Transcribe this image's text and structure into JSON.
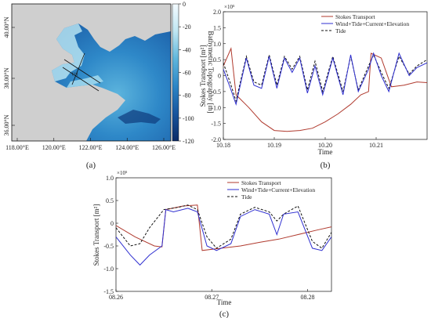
{
  "panels": {
    "a": {
      "label": "(a)"
    },
    "b": {
      "label": "(b)"
    },
    "c": {
      "label": "(c)"
    }
  },
  "colors": {
    "stokes": "#b03a2e",
    "combined": "#2f2fd0",
    "tide": "#111111"
  },
  "chart_data": [
    {
      "type": "heatmap",
      "panel": "a",
      "description_visible": "bathymetric map",
      "x_ticks": [
        "118.00°E",
        "120.00°E",
        "122.00°E",
        "124.00°E",
        "126.00°E"
      ],
      "y_ticks": [
        "36.00°N",
        "38.00°N",
        "40.00°N"
      ],
      "colorbar": {
        "label": "Bathymetric Topography [m]",
        "ticks": [
          "0",
          "-20",
          "-40",
          "-60",
          "-80",
          "-100",
          "-120"
        ],
        "range": [
          -120,
          0
        ]
      },
      "annotations": [
        "(+)"
      ]
    },
    {
      "type": "line",
      "panel": "b",
      "xlabel": "Time",
      "ylabel": "Stokes Transport [m²]",
      "exponent": "×10⁵",
      "xlim": [
        10.18,
        10.22
      ],
      "ylim": [
        -2.0,
        2.0
      ],
      "x_ticks": [
        "10.18",
        "10.19",
        "10.20",
        "10.21"
      ],
      "y_ticks": [
        "2.0",
        "1.5",
        "1.0",
        "0.5",
        "0",
        "-0.5",
        "-1.0",
        "-1.5",
        "-2.0"
      ],
      "legend": [
        "Stokes Transport",
        "Wind+Tide+Current+Elevation",
        "Tide"
      ],
      "legend_position": "top-right",
      "x": [
        10.18,
        10.1815,
        10.1825,
        10.185,
        10.19,
        10.195,
        10.1975,
        10.2,
        10.205,
        10.2085,
        10.2095,
        10.215,
        10.22
      ],
      "series": [
        {
          "name": "Stokes Transport",
          "points": [
            [
              10.18,
              0.3
            ],
            [
              10.1815,
              0.85
            ],
            [
              10.1825,
              -0.6
            ],
            [
              10.185,
              -1.0
            ],
            [
              10.1875,
              -1.45
            ],
            [
              10.19,
              -1.72
            ],
            [
              10.1925,
              -1.75
            ],
            [
              10.195,
              -1.72
            ],
            [
              10.1975,
              -1.65
            ],
            [
              10.2,
              -1.45
            ],
            [
              10.2025,
              -1.2
            ],
            [
              10.205,
              -0.9
            ],
            [
              10.207,
              -0.6
            ],
            [
              10.2085,
              -0.5
            ],
            [
              10.209,
              0.7
            ],
            [
              10.211,
              0.55
            ],
            [
              10.213,
              -0.35
            ],
            [
              10.2155,
              -0.3
            ],
            [
              10.218,
              -0.2
            ],
            [
              10.22,
              -0.22
            ]
          ]
        },
        {
          "name": "Wind+Tide+Current+Elevation",
          "points": [
            [
              10.18,
              0.2
            ],
            [
              10.1815,
              -0.45
            ],
            [
              10.1825,
              -0.9
            ],
            [
              10.1845,
              0.55
            ],
            [
              10.186,
              -0.3
            ],
            [
              10.1875,
              -0.4
            ],
            [
              10.189,
              0.6
            ],
            [
              10.1905,
              -0.4
            ],
            [
              10.192,
              0.55
            ],
            [
              10.1935,
              0.1
            ],
            [
              10.195,
              0.55
            ],
            [
              10.1965,
              -0.55
            ],
            [
              10.198,
              0.3
            ],
            [
              10.1995,
              -0.6
            ],
            [
              10.2015,
              0.55
            ],
            [
              10.2035,
              -0.6
            ],
            [
              10.205,
              0.65
            ],
            [
              10.2065,
              -0.5
            ],
            [
              10.2085,
              0.2
            ],
            [
              10.2095,
              0.7
            ],
            [
              10.211,
              0.0
            ],
            [
              10.2125,
              -0.5
            ],
            [
              10.2145,
              0.7
            ],
            [
              10.2165,
              0.0
            ],
            [
              10.218,
              0.25
            ],
            [
              10.22,
              0.4
            ]
          ]
        },
        {
          "name": "Tide",
          "points": [
            [
              10.18,
              0.4
            ],
            [
              10.1815,
              -0.3
            ],
            [
              10.1825,
              -0.8
            ],
            [
              10.1845,
              0.6
            ],
            [
              10.186,
              -0.2
            ],
            [
              10.1875,
              -0.3
            ],
            [
              10.189,
              0.65
            ],
            [
              10.1905,
              -0.3
            ],
            [
              10.192,
              0.6
            ],
            [
              10.1935,
              0.2
            ],
            [
              10.195,
              0.6
            ],
            [
              10.1965,
              -0.45
            ],
            [
              10.198,
              0.45
            ],
            [
              10.1995,
              -0.5
            ],
            [
              10.2015,
              0.6
            ],
            [
              10.2035,
              -0.5
            ],
            [
              10.205,
              0.6
            ],
            [
              10.2065,
              -0.45
            ],
            [
              10.2085,
              0.3
            ],
            [
              10.2095,
              0.65
            ],
            [
              10.211,
              0.1
            ],
            [
              10.2125,
              -0.4
            ],
            [
              10.2145,
              0.6
            ],
            [
              10.2165,
              0.05
            ],
            [
              10.218,
              0.3
            ],
            [
              10.22,
              0.5
            ]
          ]
        }
      ]
    },
    {
      "type": "line",
      "panel": "c",
      "xlabel": "Time",
      "ylabel": "Stokes Transport [m²]",
      "exponent": "×10⁵",
      "xlim": [
        8.26,
        8.2825
      ],
      "ylim": [
        -1.5,
        1.0
      ],
      "x_ticks": [
        "08.26",
        "08.27",
        "08.28"
      ],
      "y_ticks": [
        "1.0",
        "0.5",
        "0",
        "-0.5",
        "-1.0",
        "-1.5"
      ],
      "legend": [
        "Stokes Transport",
        "Wind+Tide+Current+Elevation",
        "Tide"
      ],
      "legend_position": "top-center",
      "series": [
        {
          "name": "Stokes Transport",
          "points": [
            [
              8.26,
              -0.05
            ],
            [
              8.262,
              -0.3
            ],
            [
              8.264,
              -0.5
            ],
            [
              8.2648,
              -0.52
            ],
            [
              8.2652,
              0.3
            ],
            [
              8.267,
              0.38
            ],
            [
              8.2685,
              0.4
            ],
            [
              8.269,
              -0.6
            ],
            [
              8.271,
              -0.55
            ],
            [
              8.273,
              -0.5
            ],
            [
              8.275,
              -0.42
            ],
            [
              8.277,
              -0.35
            ],
            [
              8.279,
              -0.25
            ],
            [
              8.281,
              -0.15
            ],
            [
              8.2825,
              -0.08
            ]
          ]
        },
        {
          "name": "Wind+Tide+Current+Elevation",
          "points": [
            [
              8.26,
              -0.3
            ],
            [
              8.2615,
              -0.7
            ],
            [
              8.2625,
              -0.92
            ],
            [
              8.2635,
              -0.7
            ],
            [
              8.2648,
              -0.5
            ],
            [
              8.2652,
              0.3
            ],
            [
              8.266,
              0.25
            ],
            [
              8.2675,
              0.33
            ],
            [
              8.2685,
              0.25
            ],
            [
              8.2695,
              -0.5
            ],
            [
              8.2705,
              -0.6
            ],
            [
              8.272,
              -0.45
            ],
            [
              8.273,
              0.15
            ],
            [
              8.2745,
              0.3
            ],
            [
              8.276,
              0.2
            ],
            [
              8.2768,
              -0.25
            ],
            [
              8.2775,
              0.2
            ],
            [
              8.279,
              0.25
            ],
            [
              8.2805,
              -0.55
            ],
            [
              8.2815,
              -0.6
            ],
            [
              8.2825,
              -0.3
            ]
          ]
        },
        {
          "name": "Tide",
          "points": [
            [
              8.26,
              -0.1
            ],
            [
              8.2615,
              -0.5
            ],
            [
              8.2625,
              -0.45
            ],
            [
              8.2635,
              -0.1
            ],
            [
              8.265,
              0.3
            ],
            [
              8.2665,
              0.35
            ],
            [
              8.2675,
              0.4
            ],
            [
              8.2685,
              0.3
            ],
            [
              8.2695,
              -0.3
            ],
            [
              8.2705,
              -0.55
            ],
            [
              8.272,
              -0.35
            ],
            [
              8.273,
              0.2
            ],
            [
              8.2745,
              0.35
            ],
            [
              8.276,
              0.25
            ],
            [
              8.2768,
              0.05
            ],
            [
              8.2775,
              0.2
            ],
            [
              8.279,
              0.38
            ],
            [
              8.2805,
              -0.4
            ],
            [
              8.2815,
              -0.55
            ],
            [
              8.2825,
              -0.2
            ]
          ]
        }
      ]
    }
  ]
}
